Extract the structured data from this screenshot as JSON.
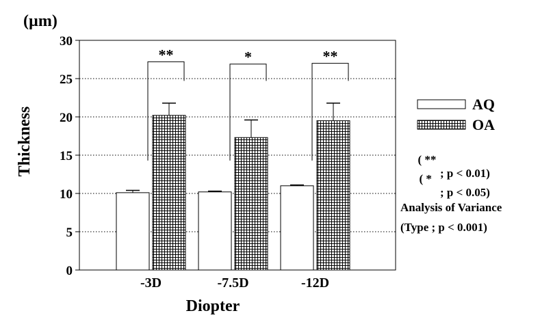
{
  "chart_data": {
    "type": "bar",
    "unit_label": "(µm)",
    "ylabel": "Thickness",
    "xlabel": "Diopter",
    "ylim": [
      0,
      30
    ],
    "yticks": [
      0,
      5,
      10,
      15,
      20,
      25,
      30
    ],
    "grid": true,
    "legend_placement": "right",
    "categories": [
      "-3D",
      "-7.5D",
      "-12D"
    ],
    "series": [
      {
        "name": "AQ",
        "values": [
          10.1,
          10.2,
          11.0
        ],
        "errors": [
          0.3,
          0.1,
          0.1
        ],
        "pattern": "open"
      },
      {
        "name": "OA",
        "values": [
          20.2,
          17.3,
          19.5
        ],
        "errors": [
          1.6,
          2.3,
          2.3
        ],
        "pattern": "crosshatch"
      }
    ],
    "significance": [
      "**",
      "*",
      "**"
    ],
    "significance_bracket_top": [
      27.2,
      26.9,
      27.0
    ],
    "notes": [
      {
        "left": "( **",
        "right": "; p < 0.01)"
      },
      {
        "left": "( *",
        "right": "; p < 0.05)"
      }
    ],
    "anova": [
      "Analysis of Variance",
      "(Type ; p < 0.001)"
    ]
  }
}
